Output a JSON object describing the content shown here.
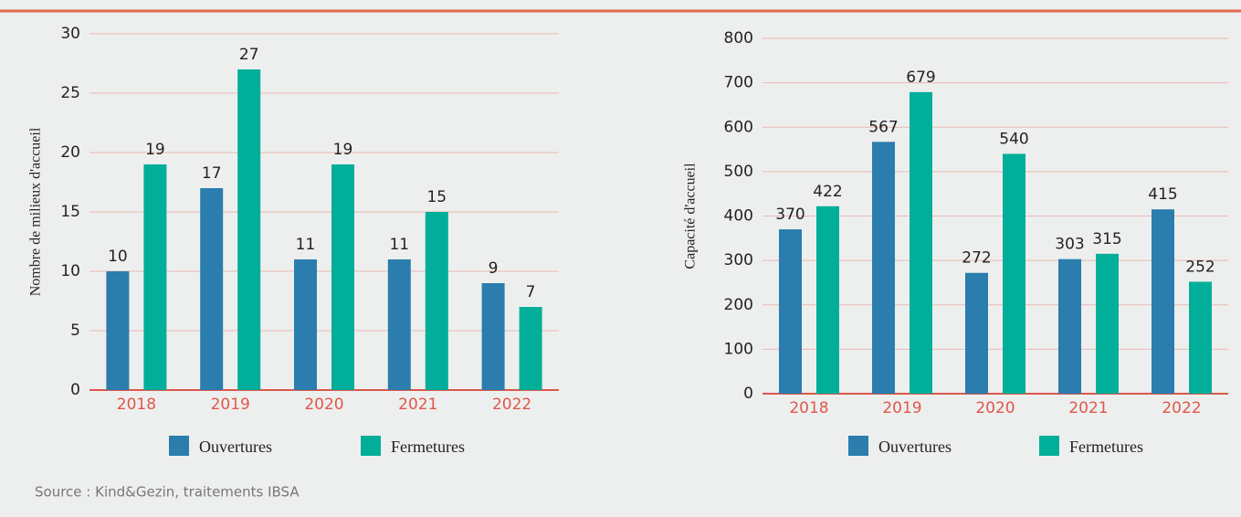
{
  "chart_data": [
    {
      "type": "bar",
      "ylabel": "Nombre de milieux d'accueil",
      "categories": [
        "2018",
        "2019",
        "2020",
        "2021",
        "2022"
      ],
      "series": [
        {
          "name": "Ouvertures",
          "color": "#2a7dad",
          "values": [
            10,
            17,
            11,
            11,
            9
          ]
        },
        {
          "name": "Fermetures",
          "color": "#00ae9a",
          "values": [
            19,
            27,
            19,
            15,
            7
          ]
        }
      ],
      "ylim": [
        0,
        30
      ],
      "yticks": [
        0,
        5,
        10,
        15,
        20,
        25,
        30
      ],
      "grid": true,
      "legend": "bottom"
    },
    {
      "type": "bar",
      "ylabel": "Capacité d'accueil",
      "categories": [
        "2018",
        "2019",
        "2020",
        "2021",
        "2022"
      ],
      "series": [
        {
          "name": "Ouvertures",
          "color": "#2a7dad",
          "values": [
            370,
            567,
            272,
            303,
            415
          ]
        },
        {
          "name": "Fermetures",
          "color": "#00ae9a",
          "values": [
            422,
            679,
            540,
            315,
            252
          ]
        }
      ],
      "ylim": [
        0,
        800
      ],
      "yticks": [
        0,
        100,
        200,
        300,
        400,
        500,
        600,
        700,
        800
      ],
      "grid": true,
      "legend": "bottom"
    }
  ],
  "source": "Source : Kind&Gezin, traitements IBSA"
}
